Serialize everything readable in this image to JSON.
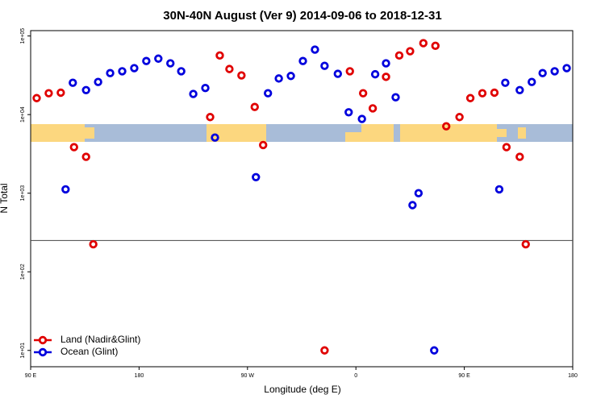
{
  "chart_data": {
    "type": "scatter",
    "title": "30N-40N August (Ver 9)   2014-09-06 to 2018-12-31",
    "x_label": "Longitude (deg E)",
    "y_label": "N Total",
    "log_y": true,
    "xlim": [
      90,
      540
    ],
    "ylim": [
      6.2,
      117000
    ],
    "xticks": [
      {
        "value": 90,
        "label": "90 E"
      },
      {
        "value": 180,
        "label": "180"
      },
      {
        "value": 270,
        "label": "90 W"
      },
      {
        "value": 360,
        "label": "0"
      },
      {
        "value": 450,
        "label": "90 E"
      },
      {
        "value": 540,
        "label": "180"
      }
    ],
    "yticks": [
      {
        "value": 10,
        "label": "1e+01"
      },
      {
        "value": 100,
        "label": "1e+02"
      },
      {
        "value": 1000,
        "label": "1e+03"
      },
      {
        "value": 10000,
        "label": "1e+04"
      },
      {
        "value": 100000,
        "label": "1e+05"
      }
    ],
    "reference_line": 250,
    "legend": "bottom-left",
    "series": [
      {
        "name": "Land (Nadir&Glint)",
        "color": "#e00000",
        "x": [
          95,
          105,
          115,
          126,
          136,
          142,
          239,
          247,
          255,
          265,
          276,
          283,
          334,
          355,
          366,
          374,
          385,
          396,
          405,
          416,
          426,
          435,
          446,
          455,
          465,
          475,
          485,
          496,
          501
        ],
        "values": [
          16200,
          18700,
          19000,
          3850,
          2900,
          224,
          9300,
          56500,
          38000,
          31500,
          12500,
          4100,
          10,
          35600,
          18700,
          12000,
          30200,
          56500,
          64000,
          81000,
          75000,
          7100,
          9300,
          16200,
          18700,
          19000,
          3850,
          2900,
          224
        ]
      },
      {
        "name": "Ocean (Glint)",
        "color": "#0000dd",
        "x": [
          119,
          125,
          136,
          146,
          156,
          166,
          176,
          186,
          196,
          206,
          215,
          225,
          235,
          243,
          277,
          287,
          296,
          306,
          316,
          326,
          334,
          345,
          354,
          365,
          376,
          385,
          393,
          407,
          412,
          425,
          479,
          484,
          496,
          506,
          515,
          525,
          535
        ],
        "values": [
          1120,
          25400,
          20500,
          26000,
          33700,
          35600,
          39000,
          48000,
          51500,
          44900,
          35600,
          18300,
          21800,
          5100,
          1600,
          18700,
          28800,
          31000,
          48000,
          67000,
          41700,
          33000,
          10700,
          8800,
          32600,
          44900,
          16600,
          705,
          1000,
          10,
          1120,
          25400,
          20500,
          26000,
          33700,
          35600,
          39000
        ]
      }
    ]
  }
}
